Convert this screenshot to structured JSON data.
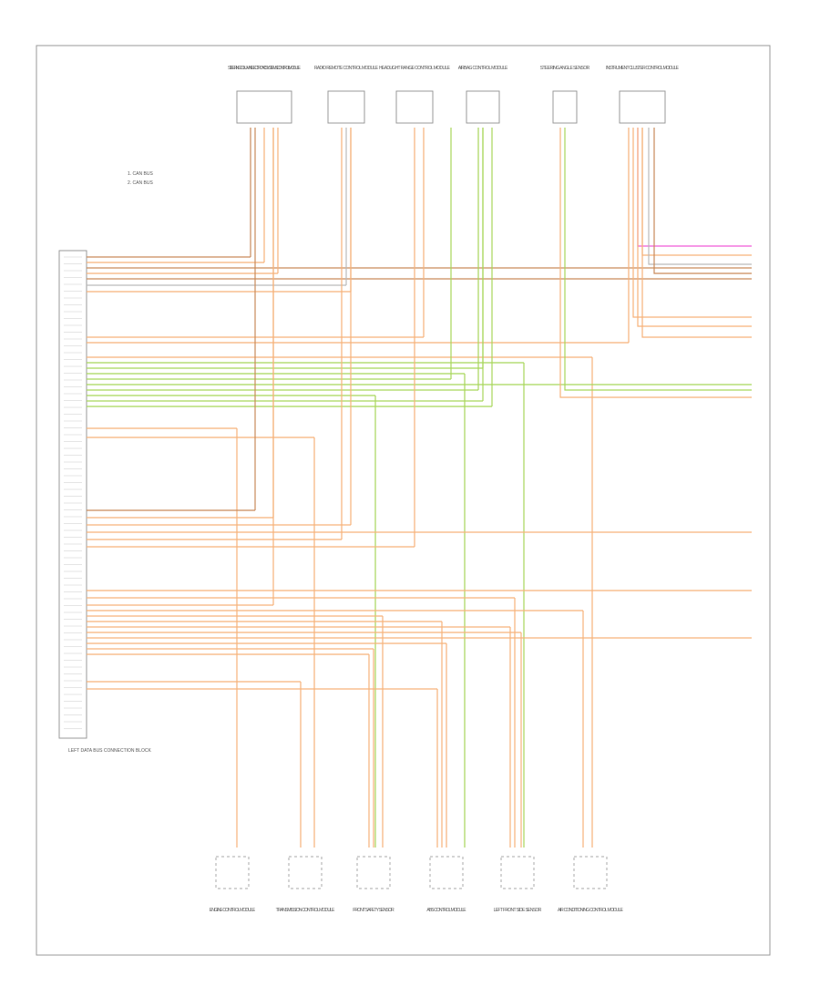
{
  "top_modules": [
    {
      "label": "STEERING COLUMN ELECTRONIC SYSTEMS CONTROL MODULE"
    },
    {
      "label": "RADIO REMOTE CONTROL MODULE"
    },
    {
      "label": "HEADLIGHT RANGE CONTROL MODULE"
    },
    {
      "label": "AIRBAG CONTROL MODULE"
    },
    {
      "label": "STEERING ANGLE SENSOR"
    },
    {
      "label": "INSTRUMENT CLUSTER CONTROL MODULE"
    }
  ],
  "bottom_modules": [
    {
      "label": "ENGINE CONTROL MODULE"
    },
    {
      "label": "TRANSMISSION CONTROL MODULE"
    },
    {
      "label": "FRONT SAFETY SENSOR"
    },
    {
      "label": "ABS CONTROL MODULE"
    },
    {
      "label": "LEFT FRONT SIDE SENSOR"
    },
    {
      "label": "AIR CONDITIONING CONTROL MODULE"
    }
  ],
  "connector": {
    "label": "LEFT DATA BUS CONNECTION BLOCK"
  },
  "legend": [
    "1. CAN BUS",
    "2. CAN BUS"
  ]
}
